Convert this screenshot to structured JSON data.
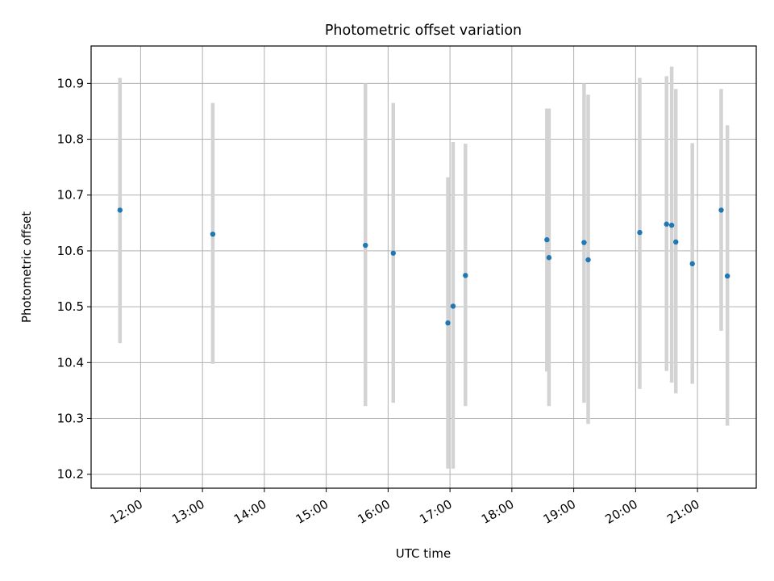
{
  "chart_data": {
    "type": "scatter",
    "title": "Photometric offset variation",
    "xlabel": "UTC time",
    "ylabel": "Photometric offset",
    "x_ticks": [
      "12:00",
      "13:00",
      "14:00",
      "15:00",
      "16:00",
      "17:00",
      "18:00",
      "19:00",
      "20:00",
      "21:00"
    ],
    "y_ticks": [
      "10.2",
      "10.3",
      "10.4",
      "10.5",
      "10.6",
      "10.7",
      "10.8",
      "10.9"
    ],
    "xlim": [
      "11:12",
      "21:57"
    ],
    "ylim": [
      10.175,
      10.967
    ],
    "grid": true,
    "colors": {
      "points": "#1f77b4",
      "errorbars": "#d3d3d3",
      "grid": "#b0b0b0"
    },
    "points": [
      {
        "x": "11:40",
        "y": 10.673,
        "y_low": 10.435,
        "y_high": 10.91
      },
      {
        "x": "13:10",
        "y": 10.63,
        "y_low": 10.398,
        "y_high": 10.865
      },
      {
        "x": "15:38",
        "y": 10.61,
        "y_low": 10.322,
        "y_high": 10.9
      },
      {
        "x": "16:05",
        "y": 10.596,
        "y_low": 10.328,
        "y_high": 10.865
      },
      {
        "x": "16:58",
        "y": 10.471,
        "y_low": 10.21,
        "y_high": 10.732
      },
      {
        "x": "17:03",
        "y": 10.501,
        "y_low": 10.21,
        "y_high": 10.795
      },
      {
        "x": "17:15",
        "y": 10.556,
        "y_low": 10.322,
        "y_high": 10.792
      },
      {
        "x": "18:34",
        "y": 10.62,
        "y_low": 10.384,
        "y_high": 10.855
      },
      {
        "x": "18:36",
        "y": 10.588,
        "y_low": 10.322,
        "y_high": 10.855
      },
      {
        "x": "19:10",
        "y": 10.615,
        "y_low": 10.328,
        "y_high": 10.9
      },
      {
        "x": "19:14",
        "y": 10.584,
        "y_low": 10.29,
        "y_high": 10.88
      },
      {
        "x": "20:04",
        "y": 10.633,
        "y_low": 10.353,
        "y_high": 10.91
      },
      {
        "x": "20:30",
        "y": 10.648,
        "y_low": 10.385,
        "y_high": 10.913
      },
      {
        "x": "20:35",
        "y": 10.646,
        "y_low": 10.364,
        "y_high": 10.93
      },
      {
        "x": "20:39",
        "y": 10.616,
        "y_low": 10.345,
        "y_high": 10.89
      },
      {
        "x": "20:55",
        "y": 10.577,
        "y_low": 10.362,
        "y_high": 10.793
      },
      {
        "x": "21:23",
        "y": 10.673,
        "y_low": 10.457,
        "y_high": 10.89
      },
      {
        "x": "21:29",
        "y": 10.555,
        "y_low": 10.287,
        "y_high": 10.825
      }
    ]
  }
}
